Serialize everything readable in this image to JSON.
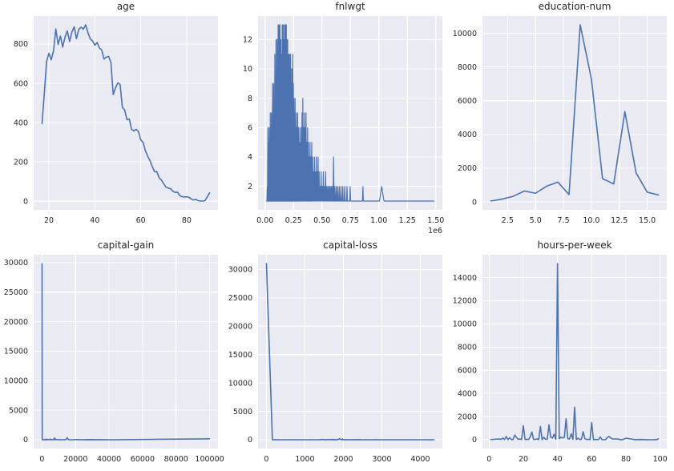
{
  "figure": {
    "background": "#ffffff",
    "axes_background": "#eaeaf2",
    "grid_color": "#ffffff",
    "line_color": "#4c72b0",
    "text_color": "#262626",
    "grid": "on",
    "legend": "none"
  },
  "chart_data": [
    {
      "id": "age",
      "title": "age",
      "type": "line",
      "xlim": [
        13.35,
        93.65
      ],
      "ylim": [
        -43.85,
        942.85
      ],
      "xticks": [
        20,
        40,
        60,
        80
      ],
      "xtick_labels": [
        "20",
        "40",
        "60",
        "80"
      ],
      "yticks": [
        0,
        200,
        400,
        600,
        800
      ],
      "ytick_labels": [
        "0",
        "200",
        "400",
        "600",
        "800"
      ],
      "x": [
        17,
        18,
        19,
        20,
        21,
        22,
        23,
        24,
        25,
        26,
        27,
        28,
        29,
        30,
        31,
        32,
        33,
        34,
        35,
        36,
        37,
        38,
        39,
        40,
        41,
        42,
        43,
        44,
        45,
        46,
        47,
        48,
        49,
        50,
        51,
        52,
        53,
        54,
        55,
        56,
        57,
        58,
        59,
        60,
        61,
        62,
        63,
        64,
        65,
        66,
        67,
        68,
        69,
        70,
        71,
        72,
        73,
        74,
        75,
        76,
        77,
        78,
        79,
        80,
        81,
        82,
        83,
        84,
        85,
        86,
        87,
        88,
        90
      ],
      "y": [
        395,
        550,
        712,
        753,
        720,
        765,
        877,
        798,
        841,
        785,
        835,
        867,
        813,
        861,
        888,
        828,
        875,
        886,
        876,
        898,
        858,
        827,
        816,
        794,
        808,
        780,
        770,
        724,
        734,
        737,
        708,
        543,
        577,
        602,
        595,
        478,
        464,
        415,
        419,
        366,
        358,
        366,
        355,
        312,
        300,
        258,
        230,
        208,
        178,
        150,
        151,
        120,
        108,
        89,
        72,
        67,
        64,
        51,
        45,
        46,
        29,
        23,
        22,
        22,
        20,
        12,
        6,
        10,
        3,
        1,
        1,
        3,
        43
      ]
    },
    {
      "id": "fnlwgt",
      "title": "fnlwgt",
      "type": "spike-line",
      "offset_label": "1e6",
      "xlim": [
        -0.0614,
        1.5583
      ],
      "ylim": [
        0.4,
        13.6
      ],
      "xticks": [
        0.0,
        0.25,
        0.5,
        0.75,
        1.0,
        1.25,
        1.5
      ],
      "xtick_labels": [
        "0.00",
        "0.25",
        "0.50",
        "0.75",
        "1.00",
        "1.25",
        "1.50"
      ],
      "yticks": [
        2,
        4,
        6,
        8,
        10,
        12
      ],
      "ytick_labels": [
        "2",
        "4",
        "6",
        "8",
        "10",
        "12"
      ],
      "baseline": 1,
      "x_start": 0.0123,
      "x_end": 1.4847,
      "spikes": [
        [
          0.02,
          2
        ],
        [
          0.025,
          6
        ],
        [
          0.03,
          5
        ],
        [
          0.036,
          6
        ],
        [
          0.041,
          5
        ],
        [
          0.046,
          7
        ],
        [
          0.051,
          6
        ],
        [
          0.056,
          7
        ],
        [
          0.061,
          6
        ],
        [
          0.066,
          9
        ],
        [
          0.071,
          7
        ],
        [
          0.076,
          9
        ],
        [
          0.081,
          8
        ],
        [
          0.086,
          11
        ],
        [
          0.091,
          9
        ],
        [
          0.096,
          12
        ],
        [
          0.101,
          10
        ],
        [
          0.106,
          12
        ],
        [
          0.111,
          11
        ],
        [
          0.115,
          13
        ],
        [
          0.119,
          11
        ],
        [
          0.123,
          13
        ],
        [
          0.127,
          12
        ],
        [
          0.131,
          13
        ],
        [
          0.135,
          11
        ],
        [
          0.139,
          12
        ],
        [
          0.143,
          10
        ],
        [
          0.147,
          11
        ],
        [
          0.151,
          13
        ],
        [
          0.155,
          12
        ],
        [
          0.159,
          13
        ],
        [
          0.163,
          11
        ],
        [
          0.167,
          12
        ],
        [
          0.171,
          13
        ],
        [
          0.175,
          12
        ],
        [
          0.179,
          13
        ],
        [
          0.183,
          11
        ],
        [
          0.187,
          13
        ],
        [
          0.191,
          12
        ],
        [
          0.195,
          11
        ],
        [
          0.199,
          12
        ],
        [
          0.203,
          10
        ],
        [
          0.207,
          11
        ],
        [
          0.211,
          10
        ],
        [
          0.215,
          11
        ],
        [
          0.219,
          10
        ],
        [
          0.224,
          11
        ],
        [
          0.229,
          10
        ],
        [
          0.234,
          9
        ],
        [
          0.239,
          10
        ],
        [
          0.244,
          11
        ],
        [
          0.249,
          9
        ],
        [
          0.254,
          8
        ],
        [
          0.259,
          7
        ],
        [
          0.264,
          8
        ],
        [
          0.269,
          6
        ],
        [
          0.275,
          7
        ],
        [
          0.281,
          6
        ],
        [
          0.287,
          7
        ],
        [
          0.293,
          6
        ],
        [
          0.299,
          5
        ],
        [
          0.305,
          6
        ],
        [
          0.311,
          5
        ],
        [
          0.318,
          6
        ],
        [
          0.325,
          7
        ],
        [
          0.332,
          8
        ],
        [
          0.339,
          6
        ],
        [
          0.346,
          7
        ],
        [
          0.353,
          6
        ],
        [
          0.36,
          7
        ],
        [
          0.367,
          5
        ],
        [
          0.374,
          6
        ],
        [
          0.381,
          5
        ],
        [
          0.388,
          4
        ],
        [
          0.395,
          5
        ],
        [
          0.402,
          4
        ],
        [
          0.41,
          5
        ],
        [
          0.418,
          4
        ],
        [
          0.426,
          3
        ],
        [
          0.434,
          4
        ],
        [
          0.442,
          3
        ],
        [
          0.45,
          4
        ],
        [
          0.458,
          3
        ],
        [
          0.466,
          4
        ],
        [
          0.475,
          3
        ],
        [
          0.484,
          2
        ],
        [
          0.493,
          3
        ],
        [
          0.502,
          2
        ],
        [
          0.512,
          3
        ],
        [
          0.522,
          2
        ],
        [
          0.532,
          3
        ],
        [
          0.542,
          2
        ],
        [
          0.552,
          2
        ],
        [
          0.562,
          2
        ],
        [
          0.572,
          2
        ],
        [
          0.582,
          2
        ],
        [
          0.592,
          2
        ],
        [
          0.602,
          4
        ],
        [
          0.612,
          2
        ],
        [
          0.625,
          2
        ],
        [
          0.638,
          2
        ],
        [
          0.652,
          2
        ],
        [
          0.667,
          2
        ],
        [
          0.683,
          2
        ],
        [
          0.7,
          2
        ],
        [
          0.72,
          2
        ],
        [
          0.748,
          2
        ],
        [
          0.86,
          2
        ],
        [
          1.025,
          2,
          0.02
        ]
      ]
    },
    {
      "id": "education-num",
      "title": "education-num",
      "type": "line",
      "xlim": [
        0.25,
        16.75
      ],
      "ylim": [
        -471.5,
        11023.5
      ],
      "xticks": [
        2.5,
        5.0,
        7.5,
        10.0,
        12.5,
        15.0
      ],
      "xtick_labels": [
        "2.5",
        "5.0",
        "7.5",
        "10.0",
        "12.5",
        "15.0"
      ],
      "yticks": [
        0,
        2000,
        4000,
        6000,
        8000,
        10000
      ],
      "ytick_labels": [
        "0",
        "2000",
        "4000",
        "6000",
        "8000",
        "10000"
      ],
      "x": [
        1,
        2,
        3,
        4,
        5,
        6,
        7,
        8,
        9,
        10,
        11,
        12,
        13,
        14,
        15,
        16
      ],
      "y": [
        51,
        168,
        333,
        646,
        514,
        933,
        1175,
        433,
        10501,
        7291,
        1382,
        1067,
        5355,
        1723,
        576,
        413
      ]
    },
    {
      "id": "capital-gain",
      "title": "capital-gain",
      "type": "line",
      "xlim": [
        -5000,
        105000
      ],
      "ylim": [
        -1490,
        31341
      ],
      "xticks": [
        0,
        20000,
        40000,
        60000,
        80000,
        100000
      ],
      "xtick_labels": [
        "0",
        "20000",
        "40000",
        "60000",
        "80000",
        "100000"
      ],
      "yticks": [
        0,
        5000,
        10000,
        15000,
        20000,
        25000,
        30000
      ],
      "ytick_labels": [
        "0",
        "5000",
        "10000",
        "15000",
        "20000",
        "25000",
        "30000"
      ],
      "x": [
        0,
        114,
        594,
        914,
        1055,
        1264,
        1409,
        1506,
        1797,
        2036,
        2174,
        2290,
        2407,
        2580,
        2829,
        2885,
        2964,
        3103,
        3325,
        3411,
        3464,
        3674,
        3908,
        4064,
        4386,
        4650,
        4787,
        4865,
        5013,
        5178,
        5455,
        6097,
        6418,
        6849,
        7298,
        7430,
        7688,
        7978,
        8614,
        9386,
        9562,
        10520,
        10605,
        11678,
        13550,
        14084,
        14344,
        15024,
        15831,
        18481,
        20051,
        25124,
        25236,
        27828,
        34095,
        41310,
        99999
      ],
      "y": [
        29849,
        6,
        34,
        8,
        25,
        11,
        13,
        15,
        7,
        11,
        103,
        18,
        12,
        18,
        12,
        30,
        12,
        97,
        53,
        24,
        14,
        13,
        27,
        27,
        70,
        60,
        23,
        22,
        117,
        97,
        10,
        6,
        13,
        35,
        246,
        9,
        284,
        6,
        55,
        21,
        5,
        43,
        10,
        2,
        26,
        41,
        26,
        347,
        6,
        2,
        37,
        4,
        11,
        34,
        5,
        2,
        159
      ]
    },
    {
      "id": "capital-loss",
      "title": "capital-loss",
      "type": "line",
      "xlim": [
        -218,
        4574
      ],
      "ylim": [
        -1551,
        32594
      ],
      "xticks": [
        0,
        1000,
        2000,
        3000,
        4000
      ],
      "xtick_labels": [
        "0",
        "1000",
        "2000",
        "3000",
        "4000"
      ],
      "yticks": [
        0,
        5000,
        10000,
        15000,
        20000,
        25000,
        30000
      ],
      "ytick_labels": [
        "0",
        "5000",
        "10000",
        "15000",
        "20000",
        "25000",
        "30000"
      ],
      "x": [
        0,
        155,
        213,
        323,
        419,
        625,
        810,
        974,
        1092,
        1258,
        1380,
        1408,
        1485,
        1504,
        1564,
        1590,
        1602,
        1617,
        1628,
        1651,
        1668,
        1672,
        1719,
        1735,
        1740,
        1755,
        1762,
        1816,
        1825,
        1844,
        1848,
        1876,
        1887,
        1902,
        1944,
        1974,
        1977,
        1980,
        2001,
        2042,
        2051,
        2057,
        2080,
        2129,
        2163,
        2174,
        2179,
        2201,
        2205,
        2231,
        2238,
        2246,
        2258,
        2267,
        2282,
        2339,
        2352,
        2377,
        2392,
        2415,
        2444,
        2457,
        2489,
        2547,
        2559,
        2603,
        2754,
        2824,
        3004,
        3683,
        3770,
        3900,
        4356
      ],
      "y": [
        31042,
        1,
        4,
        3,
        2,
        1,
        2,
        2,
        1,
        1,
        10,
        21,
        51,
        9,
        24,
        31,
        47,
        24,
        35,
        9,
        13,
        44,
        23,
        9,
        58,
        9,
        27,
        14,
        11,
        13,
        51,
        44,
        159,
        202,
        5,
        32,
        168,
        20,
        23,
        12,
        23,
        7,
        4,
        6,
        6,
        8,
        9,
        9,
        14,
        11,
        6,
        8,
        26,
        4,
        5,
        6,
        5,
        7,
        6,
        49,
        9,
        12,
        2,
        5,
        13,
        3,
        2,
        9,
        2,
        2,
        2,
        2,
        3
      ]
    },
    {
      "id": "hours-per-week",
      "title": "hours-per-week",
      "type": "line",
      "xlim": [
        -3.9,
        103.9
      ],
      "ylim": [
        -759,
        15978
      ],
      "xticks": [
        0,
        20,
        40,
        60,
        80,
        100
      ],
      "xtick_labels": [
        "0",
        "20",
        "40",
        "60",
        "80",
        "100"
      ],
      "yticks": [
        0,
        2000,
        4000,
        6000,
        8000,
        10000,
        12000,
        14000
      ],
      "ytick_labels": [
        "0",
        "2000",
        "4000",
        "6000",
        "8000",
        "10000",
        "12000",
        "14000"
      ],
      "x": [
        1,
        2,
        3,
        4,
        5,
        6,
        7,
        8,
        9,
        10,
        11,
        12,
        13,
        14,
        15,
        16,
        17,
        18,
        19,
        20,
        21,
        22,
        23,
        24,
        25,
        26,
        27,
        28,
        29,
        30,
        31,
        32,
        33,
        34,
        35,
        36,
        37,
        38,
        39,
        40,
        41,
        42,
        43,
        44,
        45,
        46,
        47,
        48,
        49,
        50,
        51,
        52,
        53,
        54,
        55,
        56,
        57,
        58,
        59,
        60,
        61,
        62,
        63,
        64,
        65,
        66,
        67,
        68,
        70,
        72,
        75,
        77,
        78,
        80,
        84,
        85,
        90,
        91,
        95,
        96,
        98,
        99
      ],
      "y": [
        20,
        32,
        39,
        54,
        60,
        64,
        32,
        145,
        18,
        278,
        11,
        173,
        23,
        23,
        404,
        199,
        29,
        75,
        19,
        1224,
        23,
        42,
        22,
        252,
        674,
        32,
        34,
        81,
        11,
        1149,
        6,
        218,
        39,
        36,
        1297,
        220,
        149,
        476,
        38,
        15217,
        89,
        219,
        151,
        212,
        1824,
        86,
        69,
        517,
        31,
        2819,
        16,
        138,
        23,
        48,
        694,
        97,
        23,
        46,
        10,
        1475,
        8,
        37,
        14,
        27,
        244,
        13,
        11,
        18,
        291,
        71,
        65,
        9,
        10,
        133,
        45,
        13,
        26,
        3,
        2,
        5,
        11,
        85
      ]
    }
  ]
}
